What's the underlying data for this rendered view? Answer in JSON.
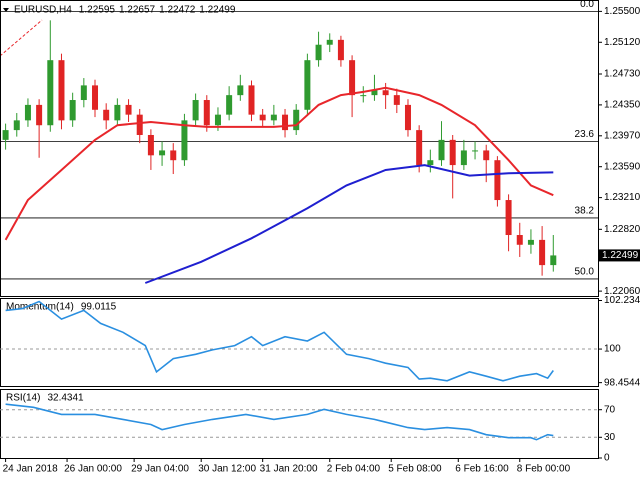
{
  "chart_data": [
    {
      "type": "candlestick",
      "title": "EURUSD,H4",
      "header_values": [
        1.22595,
        1.22657,
        1.22472,
        1.22499
      ],
      "xlim": [
        0.5,
        54
      ],
      "xticks": [
        {
          "value": 1,
          "label": "24 Jan 2018"
        },
        {
          "value": 6.5,
          "label": "26 Jan 00:00"
        },
        {
          "value": 12.5,
          "label": "29 Jan 04:00"
        },
        {
          "value": 18.5,
          "label": "30 Jan 12:00"
        },
        {
          "value": 24,
          "label": "31 Jan 20:00"
        },
        {
          "value": 30,
          "label": "2 Feb 04:00"
        },
        {
          "value": 35.5,
          "label": "5 Feb 08:00"
        },
        {
          "value": 41.5,
          "label": "6 Feb 16:00"
        },
        {
          "value": 47,
          "label": "8 Feb 00:00"
        }
      ],
      "ylim": [
        1.22,
        1.2564
      ],
      "yticks": [
        {
          "value": 1.255,
          "label": "1.25500"
        },
        {
          "value": 1.2512,
          "label": "1.25120"
        },
        {
          "value": 1.2473,
          "label": "1.24730"
        },
        {
          "value": 1.2435,
          "label": "1.24350"
        },
        {
          "value": 1.2397,
          "label": "1.23970"
        },
        {
          "value": 1.2359,
          "label": "1.23590"
        },
        {
          "value": 1.2321,
          "label": "1.23210"
        },
        {
          "value": 1.2282,
          "label": "1.22820"
        },
        {
          "value": 1.2206,
          "label": "1.22060"
        }
      ],
      "up_color": "#2f9a2f",
      "down_color": "#e02424",
      "open": [
        1.2392,
        1.2404,
        1.2416,
        1.2435,
        1.241,
        1.249,
        1.2416,
        1.2441,
        1.2459,
        1.2429,
        1.2416,
        1.2435,
        1.2423,
        1.2398,
        1.2373,
        1.2379,
        1.2367,
        1.2416,
        1.2441,
        1.241,
        1.2423,
        1.2447,
        1.2459,
        1.2423,
        1.2416,
        1.2423,
        1.2404,
        1.2429,
        1.249,
        1.2509,
        1.2515,
        1.249,
        1.2447,
        1.2447,
        1.2453,
        1.2447,
        1.2435,
        1.2404,
        1.2361,
        1.2367,
        1.2392,
        1.2361,
        1.2379,
        1.2379,
        1.2367,
        1.2318,
        1.2275,
        1.2263,
        1.2269,
        1.2238
      ],
      "close": [
        1.2404,
        1.2416,
        1.2435,
        1.241,
        1.249,
        1.2416,
        1.2441,
        1.2459,
        1.2429,
        1.2416,
        1.2435,
        1.2423,
        1.2398,
        1.2373,
        1.2379,
        1.2367,
        1.2416,
        1.2441,
        1.241,
        1.2423,
        1.2447,
        1.2459,
        1.2423,
        1.2416,
        1.2423,
        1.2404,
        1.2429,
        1.249,
        1.2509,
        1.2515,
        1.249,
        1.2447,
        1.2447,
        1.2453,
        1.2447,
        1.2435,
        1.2404,
        1.2361,
        1.2367,
        1.2392,
        1.2361,
        1.2379,
        1.2379,
        1.2367,
        1.2318,
        1.2275,
        1.2263,
        1.2269,
        1.2238,
        1.22499
      ],
      "high": [
        1.2412,
        1.2425,
        1.2443,
        1.2442,
        1.2539,
        1.2498,
        1.245,
        1.2468,
        1.2466,
        1.2437,
        1.2443,
        1.2442,
        1.243,
        1.2405,
        1.239,
        1.2388,
        1.2424,
        1.2449,
        1.2447,
        1.2432,
        1.2458,
        1.2472,
        1.2465,
        1.243,
        1.2435,
        1.243,
        1.2436,
        1.2498,
        1.2525,
        1.2523,
        1.252,
        1.2496,
        1.2458,
        1.2472,
        1.2462,
        1.2455,
        1.2442,
        1.241,
        1.238,
        1.2415,
        1.2398,
        1.2392,
        1.239,
        1.2386,
        1.2372,
        1.2325,
        1.229,
        1.2282,
        1.2286,
        1.2275
      ],
      "low": [
        1.238,
        1.2396,
        1.2408,
        1.237,
        1.2402,
        1.2405,
        1.2408,
        1.2432,
        1.242,
        1.2405,
        1.2409,
        1.2414,
        1.2388,
        1.2355,
        1.236,
        1.235,
        1.236,
        1.2408,
        1.2402,
        1.2403,
        1.2416,
        1.244,
        1.2415,
        1.2408,
        1.241,
        1.2395,
        1.2398,
        1.2422,
        1.2482,
        1.25,
        1.2482,
        1.242,
        1.2438,
        1.244,
        1.243,
        1.2425,
        1.2396,
        1.2352,
        1.2352,
        1.236,
        1.232,
        1.2355,
        1.2368,
        1.234,
        1.231,
        1.2255,
        1.2248,
        1.2252,
        1.2225,
        1.223
      ],
      "series": [
        {
          "color": "#e8262b",
          "x": [
            1,
            3,
            6,
            9,
            11,
            14,
            17,
            19,
            22,
            25,
            27,
            29,
            31,
            33,
            35,
            38,
            40,
            43,
            46,
            48,
            50
          ],
          "values": [
            1.2269,
            1.2318,
            1.2355,
            1.2392,
            1.241,
            1.2414,
            1.241,
            1.2408,
            1.2408,
            1.2408,
            1.241,
            1.2435,
            1.2447,
            1.2451,
            1.2456,
            1.2447,
            1.2435,
            1.241,
            1.2367,
            1.2336,
            1.2324
          ]
        },
        {
          "color": "#1f1fd0",
          "x": [
            13.5,
            18.5,
            23,
            28,
            31.5,
            35,
            38.5,
            42.5,
            46,
            50
          ],
          "values": [
            1.2216,
            1.2242,
            1.2271,
            1.2308,
            1.2336,
            1.2355,
            1.2361,
            1.2348,
            1.2351,
            1.2352
          ]
        }
      ],
      "levels": [
        {
          "label": "0.0",
          "value": 1.255
        },
        {
          "label": "23.6",
          "value": 1.239
        },
        {
          "label": "38.2",
          "value": 1.2296
        },
        {
          "label": "50.0",
          "value": 1.2221
        }
      ]
    },
    {
      "type": "line",
      "title": "Momentum(14)",
      "xlim": [
        0.5,
        54
      ],
      "ylim": [
        98.3,
        102.35
      ],
      "yticks": [
        102.2345,
        100,
        98.4544
      ],
      "levels": [
        100
      ],
      "series": [
        {
          "color": "#2a8fe0",
          "x": [
            1,
            2.5,
            4,
            6,
            8,
            9.5,
            11.5,
            13.5,
            14.5,
            16,
            18,
            19.5,
            21.5,
            23,
            24,
            26,
            28,
            29.5,
            31.5,
            33.5,
            35,
            37,
            38,
            39,
            40.5,
            42.5,
            44,
            45.5,
            47,
            48.5,
            49.5,
            50
          ],
          "values": [
            101.78,
            101.86,
            102.19,
            101.38,
            101.78,
            101.18,
            100.77,
            100.16,
            98.95,
            99.56,
            99.76,
            99.96,
            100.16,
            100.57,
            100.16,
            100.57,
            100.37,
            100.77,
            99.76,
            99.56,
            99.35,
            99.15,
            98.62,
            98.66,
            98.54,
            98.95,
            98.75,
            98.54,
            98.75,
            98.87,
            98.66,
            99.0115
          ]
        }
      ]
    },
    {
      "type": "line",
      "title": "RSI(14)",
      "xlim": [
        0.5,
        54
      ],
      "ylim": [
        0,
        100
      ],
      "yticks": [
        70,
        30,
        0
      ],
      "levels": [
        70,
        30
      ],
      "series": [
        {
          "color": "#2a8fe0",
          "x": [
            1,
            3.5,
            6,
            9,
            11.5,
            14,
            15,
            17,
            19.5,
            22.5,
            25,
            28,
            29.5,
            31.5,
            34,
            37,
            38.5,
            40.5,
            42.5,
            44,
            46,
            48,
            48.5,
            49.5,
            50
          ],
          "values": [
            77.9,
            73.5,
            63.2,
            63.2,
            55.9,
            48.5,
            41.2,
            48.5,
            55.9,
            63.2,
            55.9,
            63.2,
            70.6,
            63.2,
            55.9,
            44.1,
            41.2,
            44.1,
            41.2,
            33.8,
            29.4,
            29.4,
            26.5,
            33.8,
            32.4341
          ]
        }
      ]
    }
  ]
}
